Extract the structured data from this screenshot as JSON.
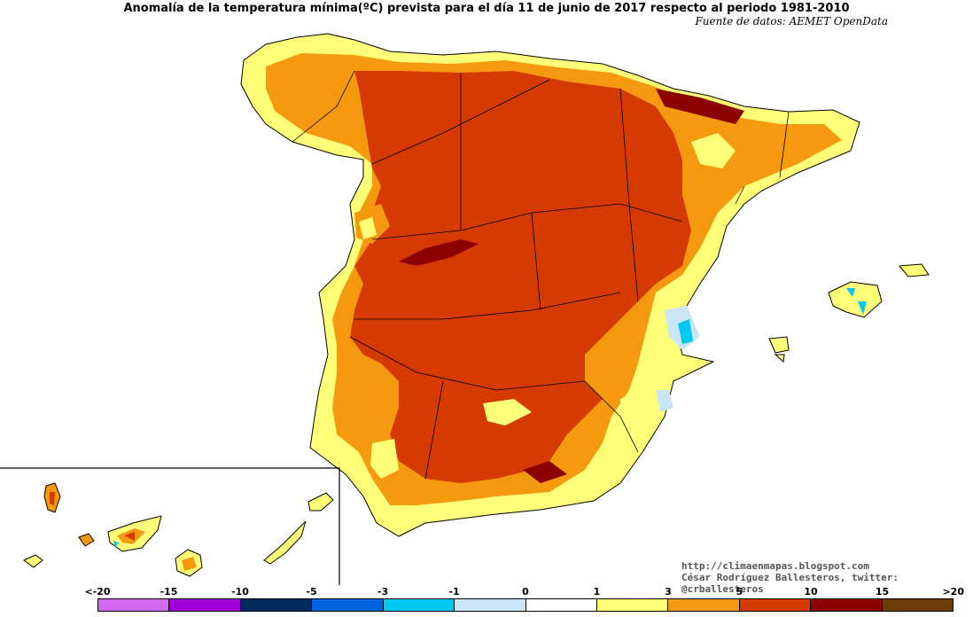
{
  "title": "Anomalía de la temperatura mínima(ºC) prevista para el día 11 de junio de 2017 respecto al periodo 1981-2010",
  "source": "Fuente de datos: AEMET OpenData",
  "credits": {
    "blog": "http://climaenmapas.blogspot.com",
    "author": "César Rodríguez Ballesteros, twitter: @crballesteros"
  },
  "legend": {
    "ticks": [
      "<-20",
      "-15",
      "-10",
      "-5",
      "-3",
      "-1",
      "0",
      "1",
      "3",
      "5",
      "10",
      "15",
      ">20"
    ],
    "colors": [
      "#d46af0",
      "#a000d8",
      "#002a5c",
      "#0064e0",
      "#00c8f0",
      "#c8e6f8",
      "#ffffff",
      "#ffff78",
      "#f59a10",
      "#d43a02",
      "#8c0000",
      "#6a3d08"
    ]
  },
  "map_colors": {
    "anomaly_1_3": "#ffff78",
    "anomaly_3_5": "#f59a10",
    "anomaly_5_10": "#d43a02",
    "anomaly_10_15": "#8c0000",
    "anomaly_m1_0": "#c8e6f8",
    "anomaly_m3_m1": "#00c8f0"
  }
}
